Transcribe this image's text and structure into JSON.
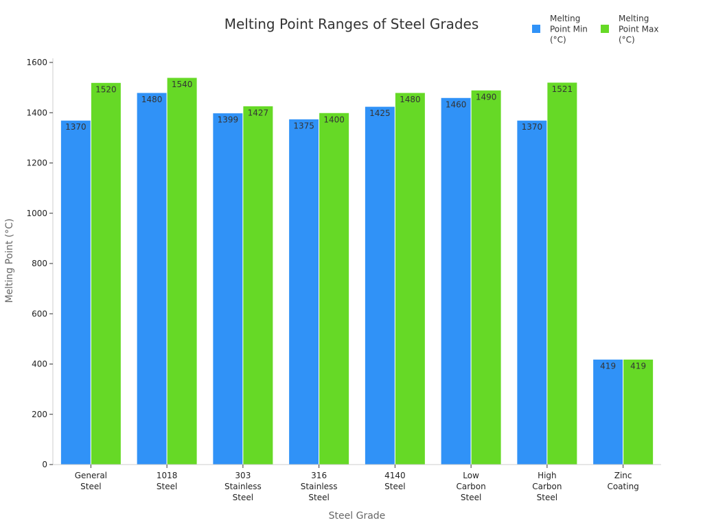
{
  "chart_data": {
    "type": "bar",
    "title": "Melting Point Ranges of Steel Grades",
    "xlabel": "Steel Grade",
    "ylabel": "Melting Point (°C)",
    "ylim": [
      0,
      1600
    ],
    "yticks": [
      0,
      200,
      400,
      600,
      800,
      1000,
      1200,
      1400,
      1600
    ],
    "grid": false,
    "legend_position": "top-right",
    "categories": [
      [
        "General",
        "Steel"
      ],
      [
        "1018",
        "Steel"
      ],
      [
        "303",
        "Stainless",
        "Steel"
      ],
      [
        "316",
        "Stainless",
        "Steel"
      ],
      [
        "4140",
        "Steel"
      ],
      [
        "Low",
        "Carbon",
        "Steel"
      ],
      [
        "High",
        "Carbon",
        "Steel"
      ],
      [
        "Zinc",
        "Coating"
      ]
    ],
    "series": [
      {
        "name": [
          "Melting",
          "Point Min",
          "(°C)"
        ],
        "color": "#3092f7",
        "values": [
          1370,
          1480,
          1399,
          1375,
          1425,
          1460,
          1370,
          419
        ]
      },
      {
        "name": [
          "Melting",
          "Point Max",
          "(°C)"
        ],
        "color": "#66d926",
        "values": [
          1520,
          1540,
          1427,
          1400,
          1480,
          1490,
          1521,
          419
        ]
      }
    ]
  }
}
